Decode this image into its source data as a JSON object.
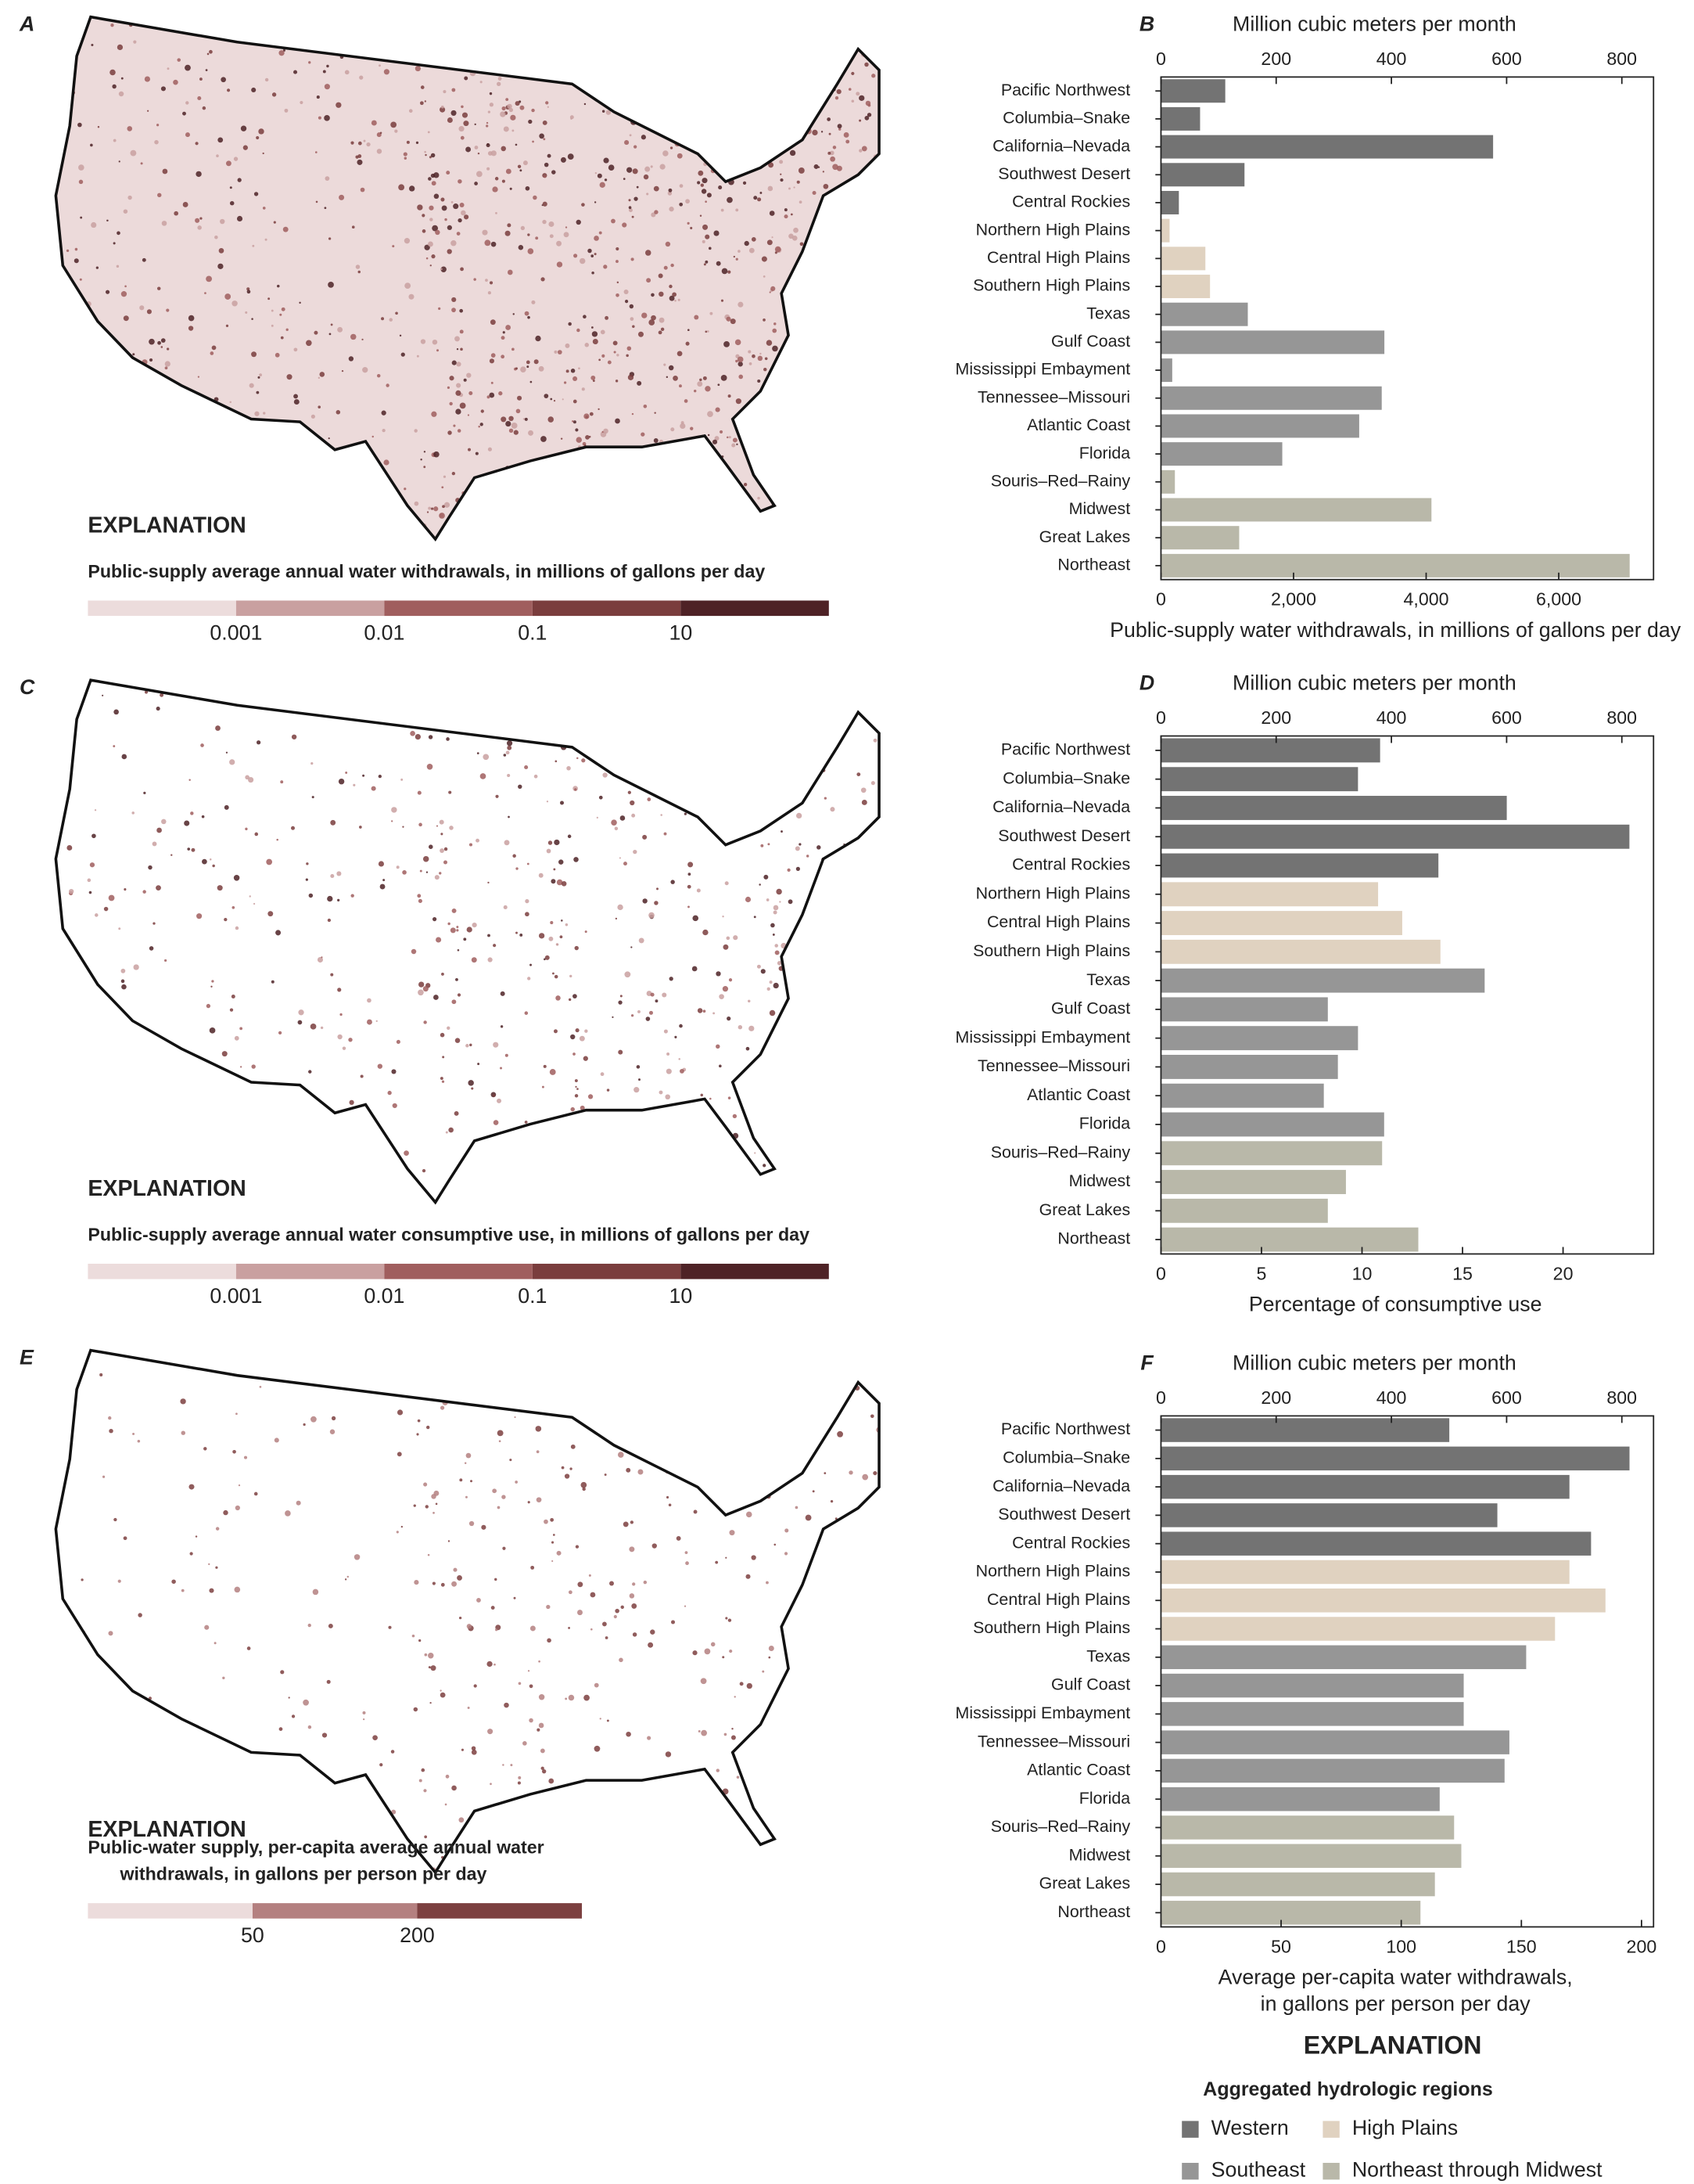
{
  "chart_data": [
    {
      "type": "bar",
      "orientation": "horizontal",
      "panel": "B",
      "x2label": "Million cubic meters per month",
      "xlabel": [
        "Public-supply water withdrawals, in millions of gallons per day"
      ],
      "categories": [
        "Pacific Northwest",
        "Columbia–Snake",
        "California–Nevada",
        "Southwest Desert",
        "Central Rockies",
        "Northern High Plains",
        "Central High Plains",
        "Southern High Plains",
        "Texas",
        "Gulf Coast",
        "Mississippi Embayment",
        "Tennessee–Missouri",
        "Atlantic Coast",
        "Florida",
        "Souris–Red–Rainy",
        "Midwest",
        "Great Lakes",
        "Northeast"
      ],
      "series": [
        {
          "color": "#737373",
          "values": [
            970,
            590,
            5010,
            1260,
            270,
            null,
            null,
            null,
            null,
            null,
            null,
            null,
            null,
            null,
            null,
            null,
            null,
            null
          ]
        },
        {
          "color": "#e0d2c0",
          "values": [
            null,
            null,
            null,
            null,
            null,
            130,
            670,
            740,
            null,
            null,
            null,
            null,
            null,
            null,
            null,
            null,
            null,
            null
          ]
        },
        {
          "color": "#969696",
          "values": [
            null,
            null,
            null,
            null,
            null,
            null,
            null,
            null,
            1310,
            3370,
            170,
            3330,
            2990,
            1830,
            null,
            null,
            null,
            null
          ]
        },
        {
          "color": "#b9b8a9",
          "values": [
            null,
            null,
            null,
            null,
            null,
            null,
            null,
            null,
            null,
            null,
            null,
            null,
            null,
            null,
            210,
            4080,
            1180,
            7070
          ]
        }
      ],
      "xlim": [
        0,
        7430
      ],
      "xticks": [
        0,
        {
          "value": 2000,
          "label": "2,000"
        },
        {
          "value": 4000,
          "label": "4,000"
        },
        {
          "value": 6000,
          "label": "6,000"
        }
      ],
      "x2lim": [
        0,
        855
      ],
      "x2ticks": [
        0,
        200,
        400,
        600,
        800
      ]
    },
    {
      "type": "bar",
      "orientation": "horizontal",
      "panel": "D",
      "x2label": "Million cubic meters per month",
      "xlabel": [
        "Percentage of consumptive use"
      ],
      "categories": [
        "Pacific Northwest",
        "Columbia–Snake",
        "California–Nevada",
        "Southwest Desert",
        "Central Rockies",
        "Northern High Plains",
        "Central High Plains",
        "Southern High Plains",
        "Texas",
        "Gulf Coast",
        "Mississippi Embayment",
        "Tennessee–Missouri",
        "Atlantic Coast",
        "Florida",
        "Souris–Red–Rainy",
        "Midwest",
        "Great Lakes",
        "Northeast"
      ],
      "series": [
        {
          "color": "#737373",
          "values": [
            10.9,
            9.8,
            17.2,
            23.3,
            13.8,
            null,
            null,
            null,
            null,
            null,
            null,
            null,
            null,
            null,
            null,
            null,
            null,
            null
          ]
        },
        {
          "color": "#e0d2c0",
          "values": [
            null,
            null,
            null,
            null,
            null,
            10.8,
            12.0,
            13.9,
            null,
            null,
            null,
            null,
            null,
            null,
            null,
            null,
            null,
            null
          ]
        },
        {
          "color": "#969696",
          "values": [
            null,
            null,
            null,
            null,
            null,
            null,
            null,
            null,
            16.1,
            8.3,
            9.8,
            8.8,
            8.1,
            11.1,
            null,
            null,
            null,
            null
          ]
        },
        {
          "color": "#b9b8a9",
          "values": [
            null,
            null,
            null,
            null,
            null,
            null,
            null,
            null,
            null,
            null,
            null,
            null,
            null,
            null,
            11.0,
            9.2,
            8.3,
            12.8
          ]
        }
      ],
      "xlim": [
        0,
        24.5
      ],
      "xticks": [
        0,
        5,
        10,
        15,
        20
      ],
      "x2lim": [
        0,
        855
      ],
      "x2ticks": [
        0,
        200,
        400,
        600,
        800
      ]
    },
    {
      "type": "bar",
      "orientation": "horizontal",
      "panel": "F",
      "x2label": "Million cubic meters per month",
      "xlabel": [
        "Average per-capita water withdrawals,",
        "in gallons per person per day"
      ],
      "categories": [
        "Pacific Northwest",
        "Columbia–Snake",
        "California–Nevada",
        "Southwest Desert",
        "Central Rockies",
        "Northern High Plains",
        "Central High Plains",
        "Southern High Plains",
        "Texas",
        "Gulf Coast",
        "Mississippi Embayment",
        "Tennessee–Missouri",
        "Atlantic Coast",
        "Florida",
        "Souris–Red–Rainy",
        "Midwest",
        "Great Lakes",
        "Northeast"
      ],
      "series": [
        {
          "color": "#737373",
          "values": [
            120,
            195,
            170,
            140,
            179,
            null,
            null,
            null,
            null,
            null,
            null,
            null,
            null,
            null,
            null,
            null,
            null,
            null
          ]
        },
        {
          "color": "#e0d2c0",
          "values": [
            null,
            null,
            null,
            null,
            null,
            170,
            185,
            164,
            null,
            null,
            null,
            null,
            null,
            null,
            null,
            null,
            null,
            null
          ]
        },
        {
          "color": "#969696",
          "values": [
            null,
            null,
            null,
            null,
            null,
            null,
            null,
            null,
            152,
            126,
            126,
            145,
            143,
            116,
            null,
            null,
            null,
            null
          ]
        },
        {
          "color": "#b9b8a9",
          "values": [
            null,
            null,
            null,
            null,
            null,
            null,
            null,
            null,
            null,
            null,
            null,
            null,
            null,
            null,
            122,
            125,
            114,
            108
          ]
        }
      ],
      "xlim": [
        0,
        205
      ],
      "xticks": [
        0,
        50,
        100,
        150,
        200
      ],
      "x2lim": [
        0,
        855
      ],
      "x2ticks": [
        0,
        200,
        400,
        600,
        800
      ]
    }
  ],
  "maps": [
    {
      "panel": "A",
      "explanation": "EXPLANATION",
      "legend_title": [
        "Public-supply average annual water withdrawals, in millions of gallons per day"
      ],
      "scale_colors": [
        "#ecdcdc",
        "#c9a0a0",
        "#a05e5e",
        "#7a3d3d",
        "#4e2226"
      ],
      "scale_labels": [
        "0.001",
        "0.01",
        "0.1",
        "10"
      ]
    },
    {
      "panel": "C",
      "explanation": "EXPLANATION",
      "legend_title": [
        "Public-supply average annual water consumptive use, in millions of gallons per day"
      ],
      "scale_colors": [
        "#ecdcdc",
        "#c9a0a0",
        "#a05e5e",
        "#7a3d3d",
        "#4e2226"
      ],
      "scale_labels": [
        "0.001",
        "0.01",
        "0.1",
        "10"
      ]
    },
    {
      "panel": "E",
      "explanation": "EXPLANATION",
      "legend_title": [
        "Public-water supply, per-capita average annual water",
        "withdrawals, in gallons per person per day"
      ],
      "scale_colors": [
        "#ecdcdc",
        "#b48080",
        "#7c4040"
      ],
      "scale_labels": [
        "50",
        "200"
      ]
    }
  ],
  "legend": {
    "title": "EXPLANATION",
    "subtitle": "Aggregated hydrologic regions",
    "groups": [
      {
        "name": "Western",
        "color": "#737373"
      },
      {
        "name": "High Plains",
        "color": "#e0d2c0"
      },
      {
        "name": "Southeast",
        "color": "#969696"
      },
      {
        "name": "Northeast through Midwest",
        "color": "#b9b8a9"
      }
    ]
  }
}
